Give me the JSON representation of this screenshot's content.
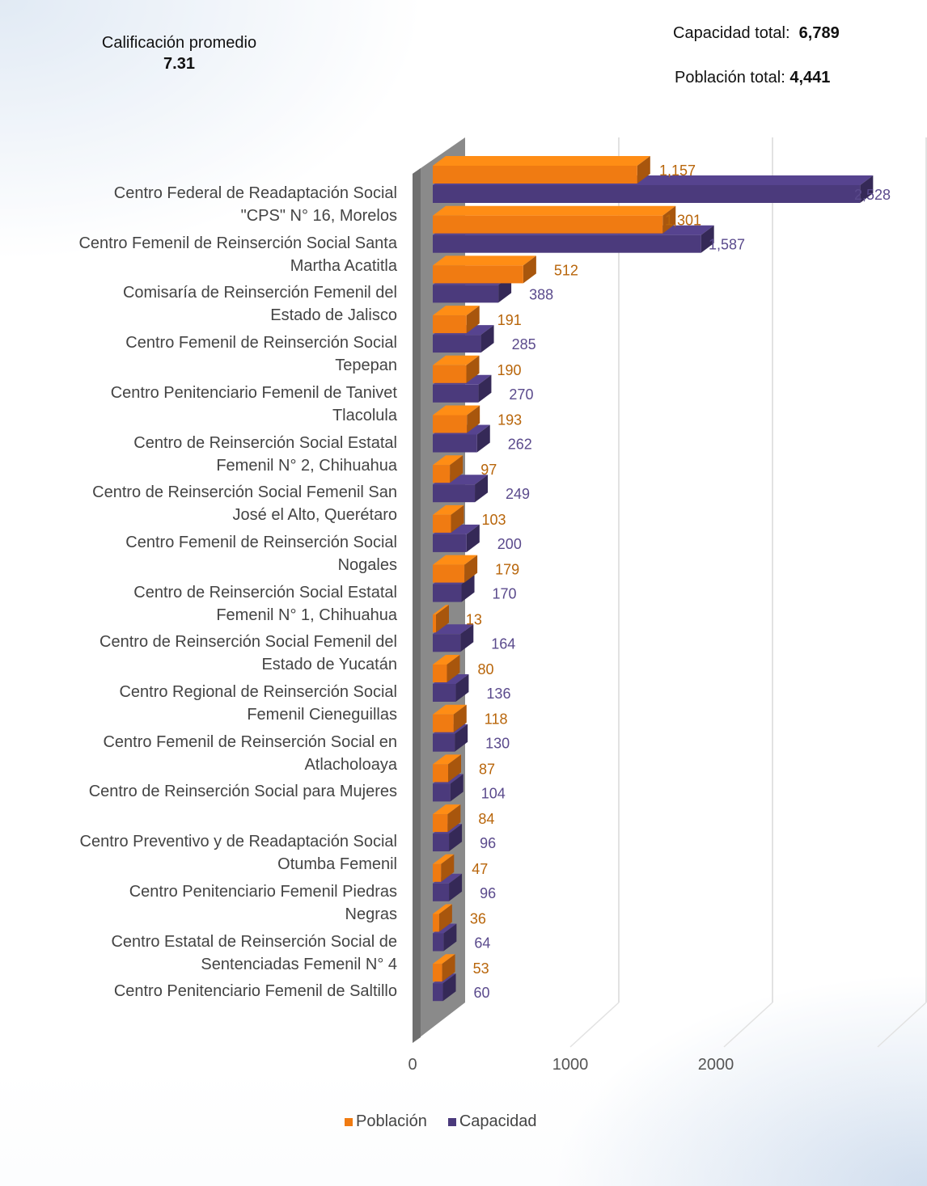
{
  "summary": {
    "rating_label": "Calificación promedio",
    "rating_value": "7.31",
    "capacity_label": "Capacidad total:",
    "capacity_value": "6,789",
    "population_label": "Población  total:",
    "population_value": "4,441"
  },
  "colors": {
    "poblacion": "#f07b12",
    "capacidad": "#4b3a7c"
  },
  "chart_data": {
    "type": "bar",
    "orientation": "horizontal",
    "style": "3d",
    "title": "",
    "xlabel": "",
    "ylabel": "",
    "xlim": [
      0,
      3000
    ],
    "x_ticks": [
      "0",
      "1000",
      "2000"
    ],
    "grid": true,
    "legend_position": "bottom",
    "categories": [
      [
        "Centro Federal de Readaptación Social",
        "\"CPS\" N° 16, Morelos"
      ],
      [
        "Centro Femenil de Reinserción Social Santa",
        "Martha Acatitla"
      ],
      [
        "Comisaría de Reinserción Femenil del",
        "Estado de Jalisco"
      ],
      [
        "Centro Femenil de Reinserción Social",
        "Tepepan"
      ],
      [
        "Centro Penitenciario Femenil de Tanivet",
        "Tlacolula"
      ],
      [
        "Centro de Reinserción Social Estatal",
        "Femenil N° 2, Chihuahua"
      ],
      [
        "Centro de Reinserción Social Femenil San",
        "José el Alto, Querétaro"
      ],
      [
        "Centro Femenil de Reinserción Social",
        "Nogales"
      ],
      [
        "Centro de Reinserción Social Estatal",
        "Femenil N° 1, Chihuahua"
      ],
      [
        "Centro de Reinserción Social Femenil del",
        "Estado de Yucatán"
      ],
      [
        "Centro Regional de Reinserción Social",
        "Femenil Cieneguillas"
      ],
      [
        "Centro Femenil de Reinserción Social en",
        "Atlacholoaya"
      ],
      [
        "",
        "Centro de Reinserción Social para Mujeres"
      ],
      [
        "Centro Preventivo y de Readaptación Social",
        "Otumba Femenil"
      ],
      [
        "Centro Penitenciario Femenil Piedras",
        "Negras"
      ],
      [
        "Centro Estatal de Reinserción Social de",
        "Sentenciadas Femenil N° 4"
      ],
      [
        "",
        "Centro Penitenciario Femenil de Saltillo"
      ]
    ],
    "series": [
      {
        "name": "Población",
        "values": [
          1157,
          1301,
          512,
          191,
          190,
          193,
          97,
          103,
          179,
          13,
          80,
          118,
          87,
          84,
          47,
          36,
          53
        ],
        "labels": [
          "1,157",
          "1,301",
          "512",
          "191",
          "190",
          "193",
          "97",
          "103",
          "179",
          "13",
          "80",
          "118",
          "87",
          "84",
          "47",
          "36",
          "53"
        ]
      },
      {
        "name": "Capacidad",
        "values": [
          2528,
          1587,
          388,
          285,
          270,
          262,
          249,
          200,
          170,
          164,
          136,
          130,
          104,
          96,
          96,
          64,
          60
        ],
        "labels": [
          "2,528",
          "1,587",
          "388",
          "285",
          "270",
          "262",
          "249",
          "200",
          "170",
          "164",
          "136",
          "130",
          "104",
          "96",
          "96",
          "64",
          "60"
        ]
      }
    ]
  }
}
